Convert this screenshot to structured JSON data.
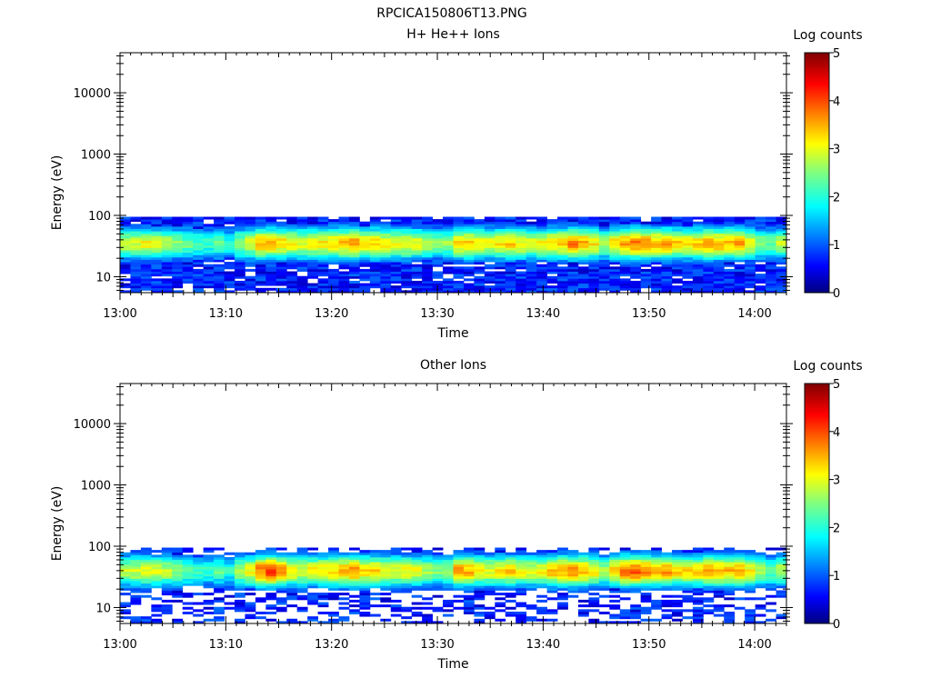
{
  "figure": {
    "title": "RPCICA150806T13.PNG"
  },
  "chart_data": [
    {
      "type": "heatmap",
      "title": "H+ He++ Ions",
      "xlabel": "Time",
      "ylabel": "Energy (eV)",
      "x_ticks": [
        "13:00",
        "13:10",
        "13:20",
        "13:30",
        "13:40",
        "13:50",
        "14:00"
      ],
      "x_range": [
        "13:00",
        "14:03"
      ],
      "y_scale": "log",
      "y_ticks": [
        "10",
        "100",
        "1000",
        "10000"
      ],
      "y_range": [
        5.5,
        45000
      ],
      "colorbar": {
        "label": "Log counts",
        "ticks": [
          "0",
          "1",
          "2",
          "3",
          "4",
          "5"
        ],
        "range": [
          0,
          5
        ]
      },
      "band": {
        "time_start": "13:00",
        "time_end": "14:03",
        "energy_min": 5.5,
        "energy_max": 95,
        "peak_energy": 35,
        "peak_log_counts": [
          2.8,
          2.9,
          3.1,
          2.9,
          2.8,
          2.6,
          2.4,
          2.2,
          2.1,
          2.3,
          2.0,
          2.6,
          2.9,
          3.4,
          3.5,
          3.3,
          3.1,
          3.0,
          3.1,
          3.2,
          3.3,
          3.4,
          3.6,
          3.2,
          3.3,
          3.1,
          3.0,
          3.1,
          3.0,
          2.7,
          2.5,
          2.6,
          3.3,
          3.4,
          3.1,
          3.0,
          3.2,
          3.3,
          3.1,
          3.0,
          3.1,
          3.3,
          3.4,
          3.7,
          3.5,
          3.2,
          2.7,
          3.3,
          3.6,
          3.8,
          3.7,
          3.5,
          3.6,
          3.3,
          3.2,
          3.3,
          3.6,
          3.5,
          3.4,
          3.5,
          3.1,
          2.6,
          2.4,
          2.8
        ],
        "background_fill": 0.9
      }
    },
    {
      "type": "heatmap",
      "title": "Other Ions",
      "xlabel": "Time",
      "ylabel": "Energy (eV)",
      "x_ticks": [
        "13:00",
        "13:10",
        "13:20",
        "13:30",
        "13:40",
        "13:50",
        "14:00"
      ],
      "x_range": [
        "13:00",
        "14:03"
      ],
      "y_scale": "log",
      "y_ticks": [
        "10",
        "100",
        "1000",
        "10000"
      ],
      "y_range": [
        5.5,
        45000
      ],
      "colorbar": {
        "label": "Log counts",
        "ticks": [
          "0",
          "1",
          "2",
          "3",
          "4",
          "5"
        ],
        "range": [
          0,
          5
        ]
      },
      "band": {
        "time_start": "13:00",
        "time_end": "14:03",
        "energy_min": 5.5,
        "energy_max": 95,
        "peak_energy": 40,
        "peak_log_counts": [
          2.8,
          2.9,
          3.1,
          2.9,
          2.8,
          2.6,
          2.4,
          2.2,
          2.1,
          2.3,
          2.0,
          2.7,
          3.1,
          3.8,
          4.1,
          3.6,
          3.2,
          3.0,
          3.1,
          3.2,
          3.3,
          3.5,
          3.7,
          3.3,
          3.3,
          3.1,
          3.0,
          3.1,
          3.0,
          2.7,
          2.5,
          2.6,
          3.6,
          3.5,
          3.1,
          3.0,
          3.2,
          3.3,
          3.1,
          3.0,
          3.1,
          3.4,
          3.5,
          3.7,
          3.5,
          3.2,
          2.7,
          3.4,
          3.8,
          3.9,
          3.7,
          3.5,
          3.6,
          3.3,
          3.2,
          3.3,
          3.6,
          3.5,
          3.4,
          3.5,
          3.1,
          2.6,
          2.4,
          2.8
        ],
        "background_fill": 0.45
      }
    }
  ]
}
